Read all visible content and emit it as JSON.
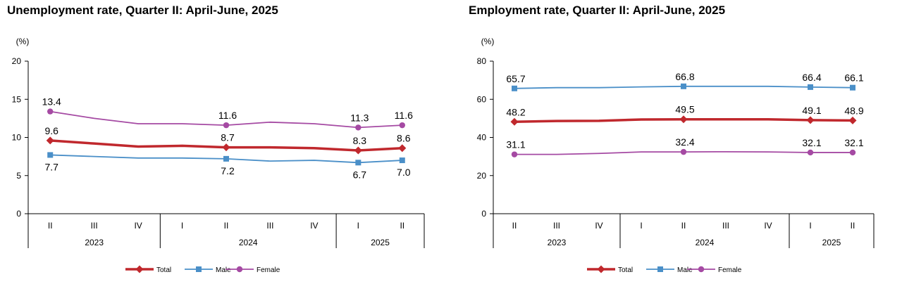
{
  "colors": {
    "total": "#c0282d",
    "male": "#4a8fc8",
    "female": "#a54aa3"
  },
  "chart_data": [
    {
      "type": "line",
      "title": "Unemployment rate, Quarter II: April-June, 2025",
      "ylabel": "(%)",
      "ylim": [
        0,
        20
      ],
      "yticks": [
        "0",
        "5",
        "10",
        "15",
        "20"
      ],
      "categories": [
        "II",
        "III",
        "IV",
        "I",
        "II",
        "III",
        "IV",
        "I",
        "II"
      ],
      "year_groups": [
        {
          "label": "2023",
          "start": 0,
          "end": 2
        },
        {
          "label": "2024",
          "start": 3,
          "end": 6
        },
        {
          "label": "2025",
          "start": 7,
          "end": 8
        }
      ],
      "grid": false,
      "legend": "bottom",
      "series": [
        {
          "name": "Total",
          "color": "#c0282d",
          "values": [
            9.6,
            9.2,
            8.8,
            8.9,
            8.7,
            8.7,
            8.6,
            8.3,
            8.6
          ],
          "labels": [
            {
              "i": 0,
              "text": "9.6"
            },
            {
              "i": 4,
              "text": "8.7"
            },
            {
              "i": 7,
              "text": "8.3"
            },
            {
              "i": 8,
              "text": "8.6"
            }
          ]
        },
        {
          "name": "Male",
          "color": "#4a8fc8",
          "values": [
            7.7,
            7.5,
            7.3,
            7.3,
            7.2,
            6.9,
            7.0,
            6.7,
            7.0
          ],
          "labels": [
            {
              "i": 0,
              "text": "7.7"
            },
            {
              "i": 4,
              "text": "7.2"
            },
            {
              "i": 7,
              "text": "6.7"
            },
            {
              "i": 8,
              "text": "7.0"
            }
          ]
        },
        {
          "name": "Female",
          "color": "#a54aa3",
          "values": [
            13.4,
            12.5,
            11.8,
            11.8,
            11.6,
            12.0,
            11.8,
            11.3,
            11.6
          ],
          "labels": [
            {
              "i": 0,
              "text": "13.4"
            },
            {
              "i": 4,
              "text": "11.6"
            },
            {
              "i": 7,
              "text": "11.3"
            },
            {
              "i": 8,
              "text": "11.6"
            }
          ]
        }
      ]
    },
    {
      "type": "line",
      "title": "Employment rate, Quarter II: April-June, 2025",
      "ylabel": "(%)",
      "ylim": [
        0,
        80
      ],
      "yticks": [
        "0",
        "20",
        "40",
        "60",
        "80"
      ],
      "categories": [
        "II",
        "III",
        "IV",
        "I",
        "II",
        "III",
        "IV",
        "I",
        "II"
      ],
      "year_groups": [
        {
          "label": "2023",
          "start": 0,
          "end": 2
        },
        {
          "label": "2024",
          "start": 3,
          "end": 6
        },
        {
          "label": "2025",
          "start": 7,
          "end": 8
        }
      ],
      "grid": false,
      "legend": "bottom",
      "series": [
        {
          "name": "Total",
          "color": "#c0282d",
          "values": [
            48.2,
            48.6,
            48.7,
            49.4,
            49.5,
            49.5,
            49.5,
            49.1,
            48.9
          ],
          "labels": [
            {
              "i": 0,
              "text": "48.2"
            },
            {
              "i": 4,
              "text": "49.5"
            },
            {
              "i": 7,
              "text": "49.1"
            },
            {
              "i": 8,
              "text": "48.9"
            }
          ]
        },
        {
          "name": "Male",
          "color": "#4a8fc8",
          "values": [
            65.7,
            66.1,
            66.1,
            66.5,
            66.8,
            66.8,
            66.8,
            66.4,
            66.1
          ],
          "labels": [
            {
              "i": 0,
              "text": "65.7"
            },
            {
              "i": 4,
              "text": "66.8"
            },
            {
              "i": 7,
              "text": "66.4"
            },
            {
              "i": 8,
              "text": "66.1"
            }
          ]
        },
        {
          "name": "Female",
          "color": "#a54aa3",
          "values": [
            31.1,
            31.1,
            31.6,
            32.4,
            32.4,
            32.5,
            32.4,
            32.1,
            32.1
          ],
          "labels": [
            {
              "i": 0,
              "text": "31.1"
            },
            {
              "i": 4,
              "text": "32.4"
            },
            {
              "i": 7,
              "text": "32.1"
            },
            {
              "i": 8,
              "text": "32.1"
            }
          ]
        }
      ]
    }
  ]
}
